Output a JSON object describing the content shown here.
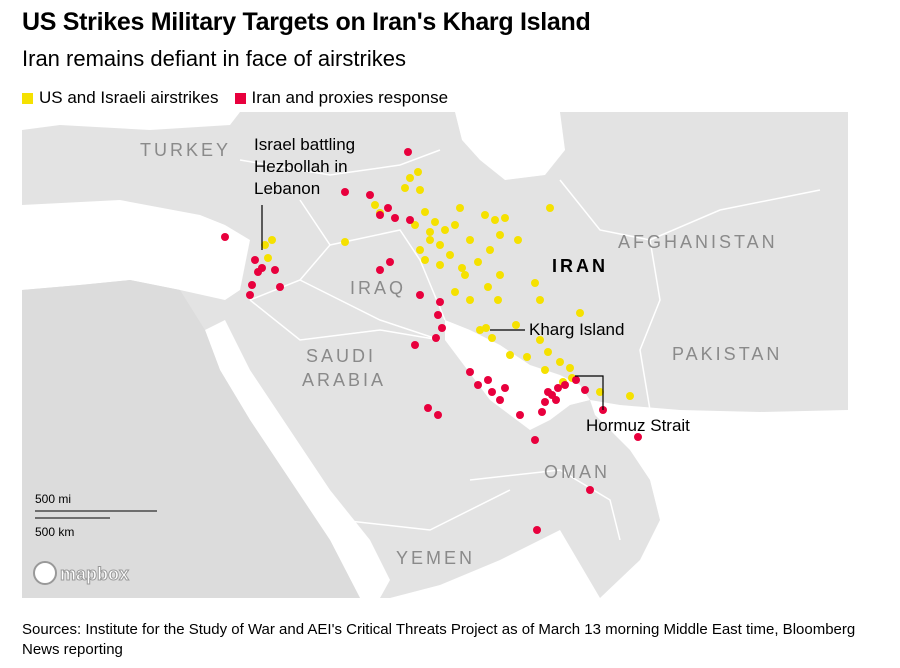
{
  "title": "US Strikes Military Targets on Iran's Kharg Island",
  "subtitle": "Iran remains defiant in face of airstrikes",
  "legend": [
    {
      "label": "US and Israeli airstrikes",
      "color": "#f5e100"
    },
    {
      "label": "Iran and proxies response",
      "color": "#e8003d"
    }
  ],
  "map": {
    "countries": [
      "TURKEY",
      "IRAQ",
      "IRAN",
      "AFGHANISTAN",
      "SAUDI",
      "ARABIA",
      "PAKISTAN",
      "OMAN",
      "YEMEN"
    ],
    "annotations": [
      "Israel battling",
      "Hezbollah in",
      "Lebanon",
      "Kharg Island",
      "Hormuz Strait"
    ],
    "scale": [
      "500 mi",
      "500 km"
    ],
    "attribution": "mapbox"
  },
  "source": "Sources: Institute for the Study of War and AEI's Critical Threats Project as of March 13 morning Middle East time, Bloomberg News reporting"
}
